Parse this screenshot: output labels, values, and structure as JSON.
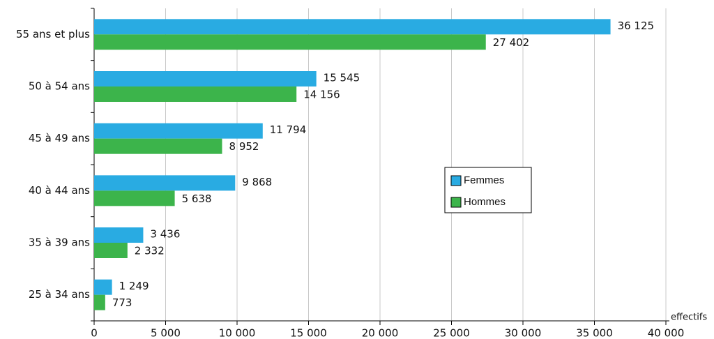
{
  "chart_data": {
    "type": "bar",
    "orientation": "horizontal",
    "x_label": "effectifs",
    "categories": [
      "55 ans et plus",
      "50 à 54 ans",
      "45 à 49 ans",
      "40 à 44 ans",
      "35 à 39 ans",
      "25 à 34 ans"
    ],
    "series": [
      {
        "name": "Femmes",
        "color": "#29abe2",
        "values": [
          36125,
          15545,
          11794,
          9868,
          3436,
          1249
        ],
        "value_labels": [
          "36 125",
          "15 545",
          "11 794",
          "9 868",
          "3 436",
          "1 249"
        ]
      },
      {
        "name": "Hommes",
        "color": "#3cb44b",
        "values": [
          27402,
          14156,
          8952,
          5638,
          2332,
          773
        ],
        "value_labels": [
          "27 402",
          "14 156",
          "8 952",
          "5 638",
          "2 332",
          "773"
        ]
      }
    ],
    "xlim": [
      0,
      40000
    ],
    "xticks": [
      0,
      {
        "value": 5000,
        "label": "5 000"
      },
      {
        "value": 10000,
        "label": "10 000"
      },
      {
        "value": 15000,
        "label": "15 000"
      },
      {
        "value": 20000,
        "label": "20 000"
      },
      {
        "value": 25000,
        "label": "25 000"
      },
      {
        "value": 30000,
        "label": "30 000"
      },
      {
        "value": 35000,
        "label": "35 000"
      },
      {
        "value": 40000,
        "label": "40 000"
      }
    ],
    "grid": true
  }
}
